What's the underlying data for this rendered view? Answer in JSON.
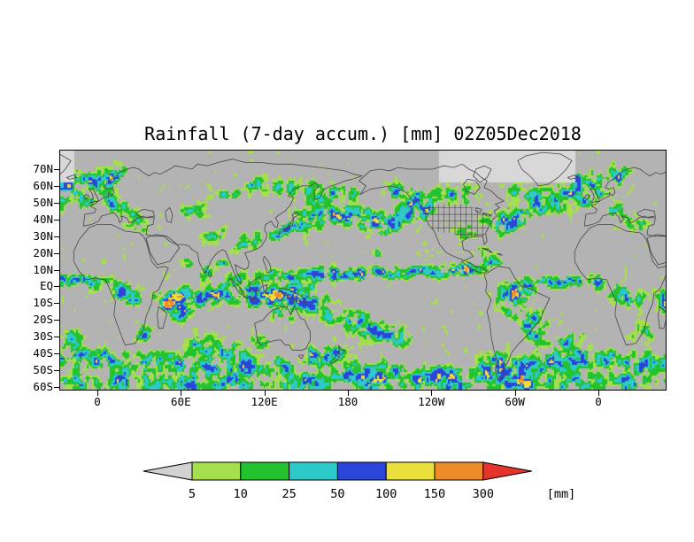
{
  "title": "Rainfall (7-day accum.) [mm] 02Z05Dec2018",
  "axes": {
    "lat_labels": [
      "70N",
      "60N",
      "50N",
      "40N",
      "30N",
      "20N",
      "10N",
      "EQ",
      "10S",
      "20S",
      "30S",
      "40S",
      "50S",
      "60S"
    ],
    "lon_labels": [
      "0",
      "60E",
      "120E",
      "180",
      "120W",
      "60W",
      "0"
    ]
  },
  "colorbar": {
    "tick_labels": [
      "5",
      "10",
      "25",
      "50",
      "100",
      "150",
      "300"
    ],
    "unit_label": "[mm]",
    "segment_colors": [
      "#A6DF4E",
      "#22C32E",
      "#2EC9C9",
      "#2A45D8",
      "#EAE03B",
      "#EE8C2B"
    ],
    "under_arrow_color": "#D2D2D2",
    "over_arrow_color": "#E5342B",
    "outline_color": "#000000"
  },
  "map": {
    "background_color": "#B3B3B3",
    "coastline_color": "#474747",
    "ice_mask_color": "#D8D8D8",
    "rain_levels": [
      5,
      10,
      25,
      50,
      100,
      150,
      300
    ],
    "rain_palette": [
      "#A6DF4E",
      "#22C32E",
      "#2EC9C9",
      "#2A45D8",
      "#EAE03B",
      "#EE8C2B",
      "#E5342B"
    ],
    "noise_seed": 7,
    "ambient": 4,
    "rain_blobs": [
      [
        140,
        6,
        15,
        3,
        110
      ],
      [
        160,
        7,
        15,
        3,
        100
      ],
      [
        180,
        7,
        15,
        2.5,
        120
      ],
      [
        200,
        8,
        15,
        2.5,
        115
      ],
      [
        220,
        8,
        14,
        2.5,
        105
      ],
      [
        240,
        9,
        14,
        2.5,
        100
      ],
      [
        258,
        9,
        10,
        3,
        95
      ],
      [
        264,
        11,
        7,
        3,
        85
      ],
      [
        320,
        3,
        12,
        2.5,
        75
      ],
      [
        336,
        3,
        10,
        2.5,
        85
      ],
      [
        350,
        4,
        8,
        2.5,
        65
      ],
      [
        55,
        -6,
        10,
        4,
        90
      ],
      [
        70,
        -7,
        10,
        4,
        100
      ],
      [
        85,
        -6,
        10,
        4,
        110
      ],
      [
        52,
        -11,
        5,
        4,
        220
      ],
      [
        61,
        -15,
        5,
        4,
        120
      ],
      [
        98,
        2,
        6,
        5,
        120
      ],
      [
        108,
        -4,
        7,
        5,
        130
      ],
      [
        120,
        -6,
        8,
        5,
        120
      ],
      [
        132,
        -6,
        8,
        5,
        130
      ],
      [
        143,
        -8,
        7,
        5,
        120
      ],
      [
        150,
        -4,
        6,
        4,
        100
      ],
      [
        140,
        -5,
        5,
        4,
        150
      ],
      [
        158,
        -10,
        8,
        4,
        110
      ],
      [
        172,
        -16,
        8,
        4,
        110
      ],
      [
        186,
        -21,
        8,
        4,
        100
      ],
      [
        200,
        -26,
        9,
        4,
        90
      ],
      [
        214,
        -30,
        9,
        4,
        80
      ],
      [
        5,
        -44,
        12,
        5,
        80
      ],
      [
        30,
        -46,
        12,
        5,
        90
      ],
      [
        55,
        -47,
        12,
        5,
        90
      ],
      [
        80,
        -47,
        12,
        5,
        85
      ],
      [
        105,
        -48,
        12,
        5,
        90
      ],
      [
        130,
        -50,
        12,
        5,
        95
      ],
      [
        75,
        -35,
        9,
        5,
        70
      ],
      [
        95,
        -38,
        9,
        5,
        75
      ],
      [
        155,
        -42,
        8,
        5,
        90
      ],
      [
        170,
        -40,
        6,
        4,
        110
      ],
      [
        185,
        -52,
        12,
        5,
        95
      ],
      [
        210,
        -52,
        12,
        5,
        90
      ],
      [
        235,
        -54,
        12,
        5,
        95
      ],
      [
        260,
        -55,
        12,
        5,
        100
      ],
      [
        283,
        -50,
        6,
        5,
        230
      ],
      [
        288,
        -44,
        5,
        4,
        120
      ],
      [
        305,
        -48,
        10,
        5,
        90
      ],
      [
        325,
        -45,
        10,
        5,
        85
      ],
      [
        345,
        -42,
        10,
        5,
        80
      ],
      [
        340,
        -32,
        8,
        5,
        60
      ],
      [
        312,
        -22,
        6,
        5,
        100
      ],
      [
        320,
        -28,
        7,
        5,
        80
      ],
      [
        295,
        -6,
        7,
        5,
        130
      ],
      [
        303,
        -3,
        6,
        5,
        160
      ],
      [
        309,
        -1,
        4,
        3,
        240
      ],
      [
        300,
        -12,
        7,
        5,
        100
      ],
      [
        17,
        -3,
        7,
        5,
        90
      ],
      [
        26,
        -6,
        6,
        4,
        80
      ],
      [
        32,
        -28,
        5,
        4,
        70
      ],
      [
        0,
        2,
        6,
        3,
        60
      ],
      [
        292,
        36,
        6,
        4,
        130
      ],
      [
        300,
        40,
        8,
        4,
        110
      ],
      [
        312,
        46,
        9,
        5,
        100
      ],
      [
        326,
        52,
        9,
        5,
        95
      ],
      [
        340,
        57,
        8,
        5,
        85
      ],
      [
        305,
        56,
        6,
        4,
        80
      ],
      [
        352,
        52,
        6,
        4,
        80
      ],
      [
        2,
        54,
        6,
        4,
        80
      ],
      [
        12,
        48,
        6,
        4,
        60
      ],
      [
        22,
        42,
        5,
        4,
        50
      ],
      [
        355,
        62,
        6,
        4,
        80
      ],
      [
        8,
        63,
        6,
        4,
        85
      ],
      [
        15,
        67,
        7,
        4,
        70
      ],
      [
        342,
        63,
        5,
        4,
        90
      ],
      [
        30,
        36,
        5,
        3,
        50
      ],
      [
        142,
        36,
        6,
        4,
        110
      ],
      [
        152,
        40,
        7,
        4,
        110
      ],
      [
        163,
        42,
        8,
        4,
        100
      ],
      [
        175,
        43,
        8,
        4,
        110
      ],
      [
        188,
        42,
        8,
        4,
        120
      ],
      [
        200,
        38,
        7,
        4,
        130
      ],
      [
        210,
        36,
        6,
        4,
        120
      ],
      [
        222,
        44,
        8,
        5,
        100
      ],
      [
        232,
        50,
        8,
        5,
        110
      ],
      [
        196,
        36,
        3,
        2,
        210
      ],
      [
        207,
        33,
        3,
        2,
        200
      ],
      [
        134,
        33,
        5,
        3,
        100
      ],
      [
        128,
        30,
        4,
        3,
        80
      ],
      [
        112,
        27,
        6,
        4,
        60
      ],
      [
        104,
        24,
        5,
        4,
        50
      ],
      [
        178,
        56,
        8,
        4,
        70
      ],
      [
        165,
        55,
        7,
        4,
        60
      ],
      [
        215,
        57,
        7,
        4,
        80
      ],
      [
        236,
        45,
        4,
        4,
        90
      ],
      [
        267,
        33,
        6,
        4,
        70
      ],
      [
        275,
        36,
        5,
        4,
        60
      ],
      [
        252,
        56,
        8,
        5,
        50
      ],
      [
        266,
        54,
        7,
        4,
        45
      ],
      [
        95,
        55,
        8,
        4,
        40
      ],
      [
        115,
        60,
        8,
        4,
        40
      ],
      [
        135,
        58,
        8,
        4,
        45
      ],
      [
        155,
        58,
        7,
        4,
        50
      ],
      [
        160,
        52,
        5,
        4,
        70
      ],
      [
        70,
        45,
        8,
        4,
        35
      ],
      [
        85,
        30,
        6,
        3,
        40
      ],
      [
        88,
        12,
        5,
        3,
        70
      ],
      [
        79,
        7,
        4,
        3,
        90
      ],
      [
        65,
        12,
        4,
        3,
        50
      ],
      [
        116,
        -33,
        5,
        3,
        60
      ],
      [
        133,
        -15,
        6,
        4,
        70
      ],
      [
        285,
        14,
        6,
        3,
        60
      ],
      [
        276,
        20,
        5,
        3,
        50
      ],
      [
        204,
        20,
        4,
        3,
        40
      ],
      [
        20,
        -57,
        15,
        5,
        80
      ],
      [
        60,
        -58,
        15,
        5,
        80
      ],
      [
        100,
        -58,
        15,
        5,
        80
      ],
      [
        150,
        -58,
        15,
        5,
        85
      ],
      [
        200,
        -58,
        15,
        5,
        85
      ],
      [
        250,
        -58,
        15,
        5,
        85
      ],
      [
        300,
        -57,
        15,
        5,
        85
      ],
      [
        340,
        -57,
        15,
        5,
        80
      ],
      [
        308,
        -58,
        5,
        4,
        180
      ]
    ]
  }
}
